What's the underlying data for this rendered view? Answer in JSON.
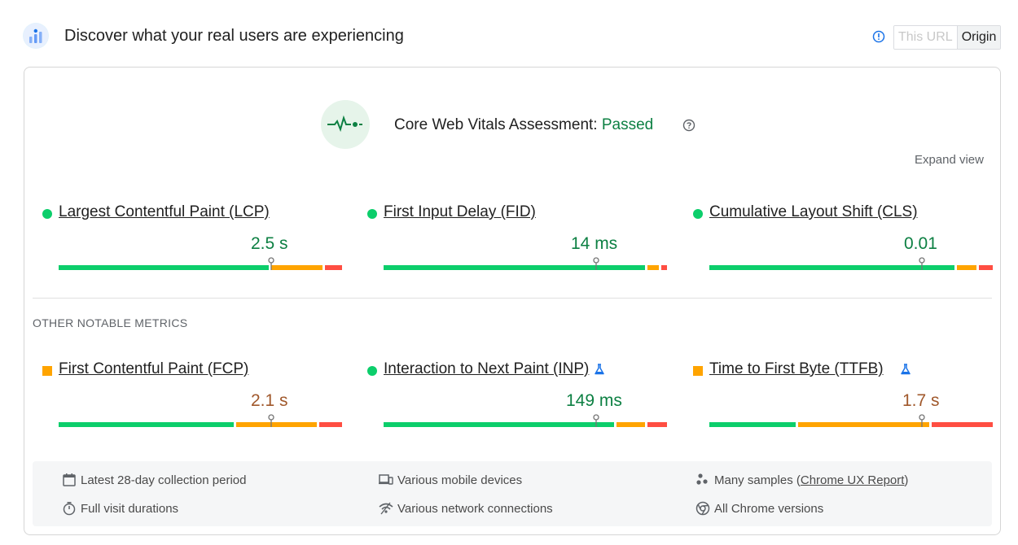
{
  "header": {
    "title": "Discover what your real users are experiencing",
    "logo_icon": "crux-dashboard-icon",
    "info_icon": "info-circle-icon",
    "toggle": {
      "this_url": "This URL",
      "origin": "Origin",
      "selected": "Origin"
    }
  },
  "assessment": {
    "icon": "vitals-pulse-icon",
    "label": "Core Web Vitals Assessment: ",
    "status": "Passed",
    "help_icon": "help-circle-icon"
  },
  "expand_view": "Expand view",
  "core_metrics": [
    {
      "name": "Largest Contentful Paint (LCP)",
      "value": "2.5 s",
      "rating": "good",
      "marker": "circle",
      "distribution": [
        0.74,
        0.18,
        0.06
      ]
    },
    {
      "name": "First Input Delay (FID)",
      "value": "14 ms",
      "rating": "good",
      "marker": "circle",
      "distribution": [
        0.93,
        0.04,
        0.02
      ]
    },
    {
      "name": "Cumulative Layout Shift (CLS)",
      "value": "0.01",
      "rating": "good",
      "marker": "circle",
      "distribution": [
        0.87,
        0.07,
        0.05
      ]
    }
  ],
  "other_label": "OTHER NOTABLE METRICS",
  "other_metrics": [
    {
      "name": "First Contentful Paint (FCP)",
      "value": "2.1 s",
      "rating": "average",
      "marker": "square",
      "experimental": false,
      "distribution": [
        0.63,
        0.29,
        0.08
      ]
    },
    {
      "name": "Interaction to Next Paint (INP)",
      "value": "149 ms",
      "rating": "good",
      "marker": "circle",
      "experimental": true,
      "distribution": [
        0.82,
        0.1,
        0.07
      ]
    },
    {
      "name": "Time to First Byte (TTFB)",
      "value": "1.7 s",
      "rating": "average",
      "marker": "square",
      "experimental": true,
      "distribution": [
        0.31,
        0.47,
        0.22
      ]
    }
  ],
  "colors": {
    "good": "#0cce6b",
    "average": "#ffa400",
    "poor": "#ff4e42",
    "good_text": "#0d8043",
    "average_text": "#a0582b"
  },
  "footer": {
    "collection_period": {
      "icon": "calendar-icon",
      "text": "Latest 28-day collection period"
    },
    "visit_durations": {
      "icon": "timer-icon",
      "text": "Full visit durations"
    },
    "devices": {
      "icon": "devices-icon",
      "text": "Various mobile devices"
    },
    "network": {
      "icon": "network-icon",
      "text": "Various network connections"
    },
    "samples": {
      "icon": "samples-icon",
      "text_before": "Many samples (",
      "link": "Chrome UX Report",
      "text_after": ")"
    },
    "chrome": {
      "icon": "chrome-icon",
      "text": "All Chrome versions"
    }
  }
}
